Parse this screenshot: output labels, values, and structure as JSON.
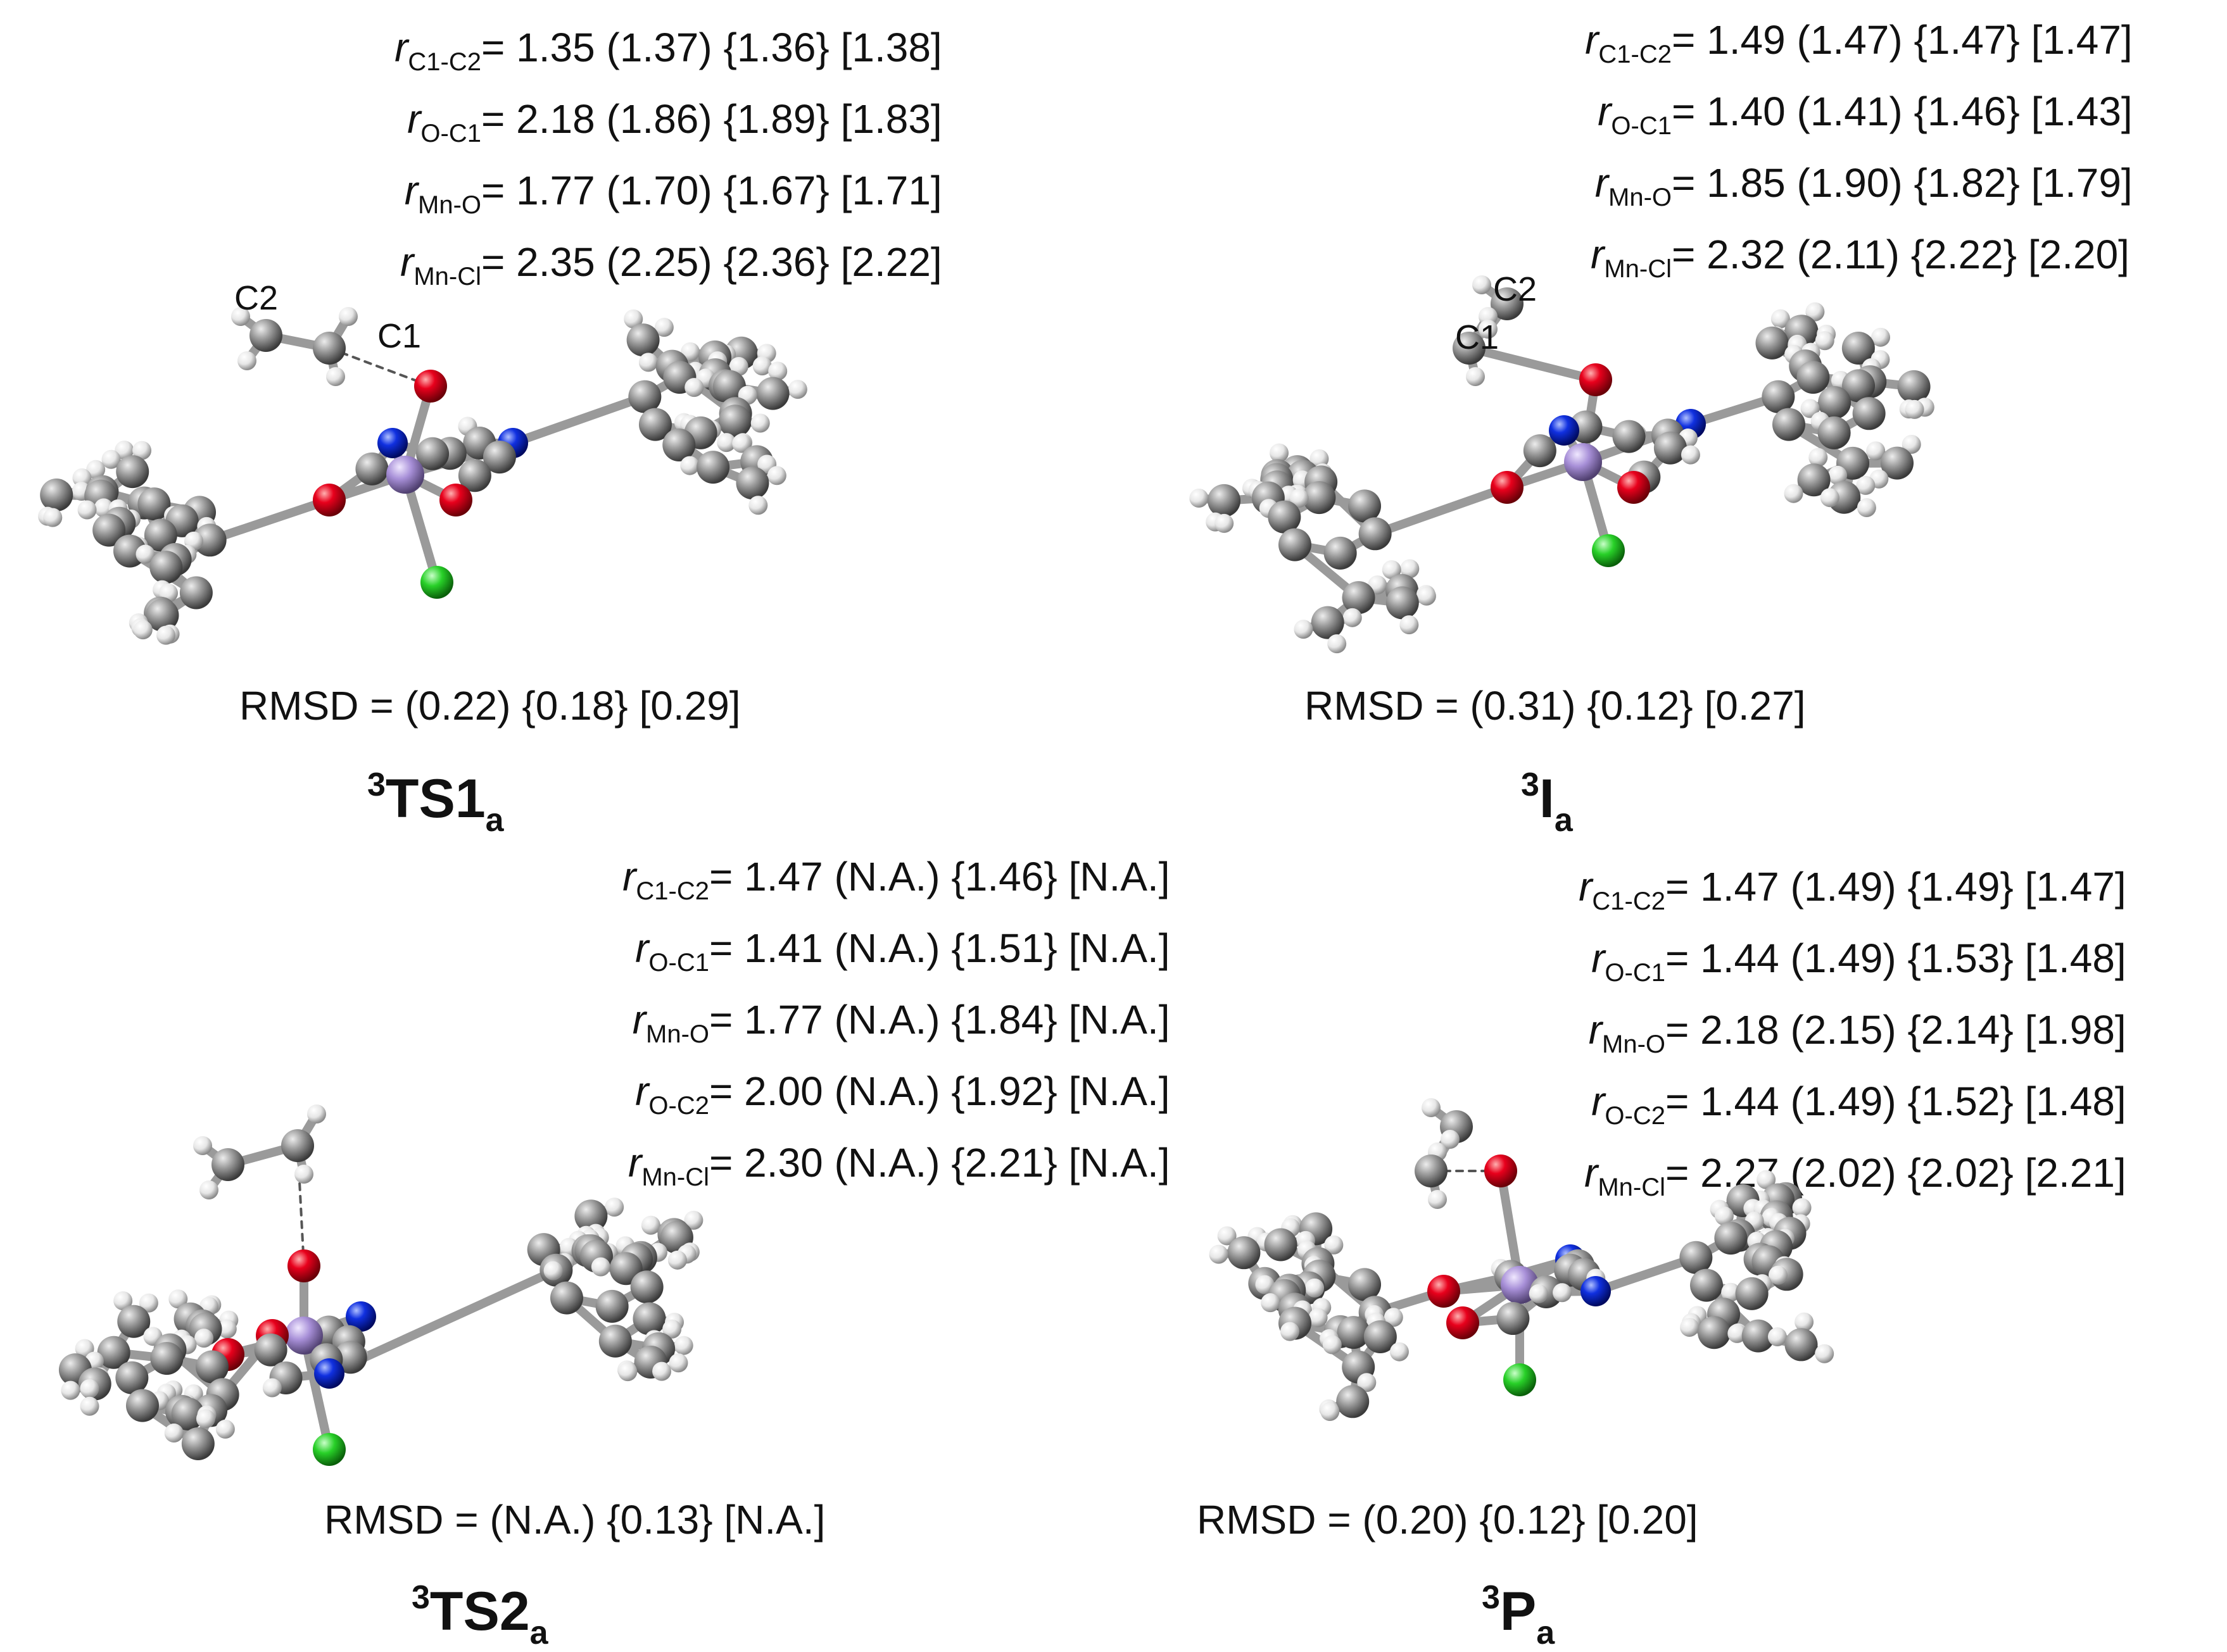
{
  "panels": [
    {
      "id": "TS1a",
      "params": [
        {
          "r": "r",
          "sub": "C1-C2",
          "val": "= 1.35 (1.37) {1.36} [1.38]"
        },
        {
          "r": "r",
          "sub": "O-C1",
          "val": "= 2.18 (1.86) {1.89} [1.83]"
        },
        {
          "r": "r",
          "sub": "Mn-O",
          "val": "= 1.77 (1.70) {1.67} [1.71]"
        },
        {
          "r": "r",
          "sub": "Mn-Cl",
          "val": "= 2.35 (2.25) {2.36} [2.22]"
        }
      ],
      "rmsd": "RMSD =  (0.22) {0.18} [0.29]",
      "title": {
        "sup": "3",
        "main": "TS1",
        "sub": "a"
      },
      "atom_labels": [
        "C2",
        "C1"
      ]
    },
    {
      "id": "Ia",
      "params": [
        {
          "r": "r",
          "sub": "C1-C2",
          "val": "= 1.49 (1.47) {1.47} [1.47]"
        },
        {
          "r": "r",
          "sub": "O-C1",
          "val": "= 1.40 (1.41) {1.46} [1.43]"
        },
        {
          "r": "r",
          "sub": "Mn-O",
          "val": "= 1.85 (1.90) {1.82} [1.79]"
        },
        {
          "r": "r",
          "sub": "Mn-Cl",
          "val": "= 2.32 (2.11) {2.22} [2.20]"
        }
      ],
      "rmsd": "RMSD =  (0.31) {0.12} [0.27]",
      "title": {
        "sup": "3",
        "main": "I",
        "sub": "a"
      },
      "atom_labels": [
        "C2",
        "C1"
      ]
    },
    {
      "id": "TS2a",
      "params": [
        {
          "r": "r",
          "sub": "C1-C2",
          "val": "= 1.47 (N.A.) {1.46} [N.A.]"
        },
        {
          "r": "r",
          "sub": "O-C1",
          "val": "= 1.41 (N.A.) {1.51} [N.A.]"
        },
        {
          "r": "r",
          "sub": "Mn-O",
          "val": "= 1.77 (N.A.) {1.84} [N.A.]"
        },
        {
          "r": "r",
          "sub": "O-C2",
          "val": "= 2.00 (N.A.) {1.92} [N.A.]"
        },
        {
          "r": "r",
          "sub": "Mn-Cl",
          "val": "= 2.30 (N.A.) {2.21} [N.A.]"
        }
      ],
      "rmsd": "RMSD =  (N.A.) {0.13} [N.A.]",
      "title": {
        "sup": "3",
        "main": "TS2",
        "sub": "a"
      },
      "atom_labels": []
    },
    {
      "id": "Pa",
      "params": [
        {
          "r": "r",
          "sub": "C1-C2",
          "val": "= 1.47 (1.49) {1.49} [1.47]"
        },
        {
          "r": "r",
          "sub": "O-C1",
          "val": "= 1.44 (1.49) {1.53} [1.48]"
        },
        {
          "r": "r",
          "sub": "Mn-O",
          "val": "= 2.18 (2.15) {2.14} [1.98]"
        },
        {
          "r": "r",
          "sub": "O-C2",
          "val": "= 1.44 (1.49) {1.52} [1.48]"
        },
        {
          "r": "r",
          "sub": "Mn-Cl",
          "val": "= 2.27 (2.02) {2.02} [2.21]"
        }
      ],
      "rmsd": "RMSD =  (0.20) {0.12} [0.20]",
      "title": {
        "sup": "3",
        "main": "P",
        "sub": "a"
      },
      "atom_labels": []
    }
  ],
  "colors": {
    "carbon": "#8c8c8c",
    "hydrogen": "#f2f2f2",
    "oxygen": "#e0001b",
    "nitrogen": "#1030e0",
    "manganese": "#a890d8",
    "chlorine": "#28d028",
    "bond": "#9a9a9a"
  }
}
